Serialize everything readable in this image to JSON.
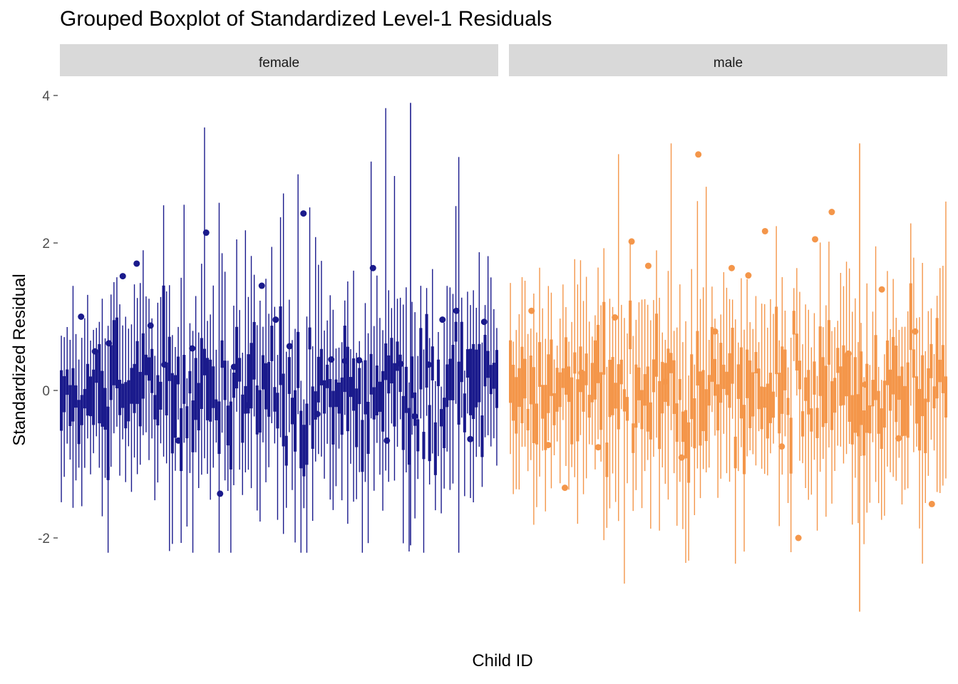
{
  "chart_data": {
    "type": "boxplot",
    "title": "Grouped Boxplot of Standardized Level-1 Residuals",
    "xlabel": "Child ID",
    "ylabel": "Standardized Residual",
    "y_ticks": [
      "-2",
      "0",
      "2",
      "4"
    ],
    "y_tick_values": [
      -2,
      0,
      2,
      4
    ],
    "ylim": [
      -3.2,
      4.1
    ],
    "grid": false,
    "facets": [
      {
        "name": "female",
        "color": "#1a1a8c",
        "approx_children": 150,
        "whisker_range_approx": [
          -2.2,
          3.9
        ],
        "outliers": [
          {
            "y": 1.0
          },
          {
            "y": 0.53
          },
          {
            "y": 0.64
          },
          {
            "y": 1.55
          },
          {
            "y": 1.72
          },
          {
            "y": 0.88
          },
          {
            "y": 0.35
          },
          {
            "y": -0.68
          },
          {
            "y": 0.57
          },
          {
            "y": 2.14
          },
          {
            "y": -1.4
          },
          {
            "y": 0.32
          },
          {
            "y": -0.2
          },
          {
            "y": 1.42
          },
          {
            "y": 0.96
          },
          {
            "y": 0.6
          },
          {
            "y": 2.4
          },
          {
            "y": -0.32
          },
          {
            "y": 0.42
          },
          {
            "y": 0.4
          },
          {
            "y": 0.41
          },
          {
            "y": 1.66
          },
          {
            "y": -0.68
          },
          {
            "y": 0.36
          },
          {
            "y": -0.35
          },
          {
            "y": 0.35
          },
          {
            "y": 0.96
          },
          {
            "y": 1.08
          },
          {
            "y": -0.66
          },
          {
            "y": 0.93
          }
        ]
      },
      {
        "name": "male",
        "color": "#f4964a",
        "approx_children": 150,
        "whisker_range_approx": [
          -3.1,
          3.35
        ],
        "outliers": [
          {
            "y": 1.08
          },
          {
            "y": -0.74
          },
          {
            "y": -1.32
          },
          {
            "y": 0.24
          },
          {
            "y": -0.77
          },
          {
            "y": 0.99
          },
          {
            "y": 2.02
          },
          {
            "y": 1.69
          },
          {
            "y": 0.12
          },
          {
            "y": -0.91
          },
          {
            "y": 3.2
          },
          {
            "y": 0.8
          },
          {
            "y": 1.66
          },
          {
            "y": 1.56
          },
          {
            "y": 2.16
          },
          {
            "y": -0.76
          },
          {
            "y": -2.0
          },
          {
            "y": 2.05
          },
          {
            "y": 2.42
          },
          {
            "y": 0.5
          },
          {
            "y": 0.08
          },
          {
            "y": 1.37
          },
          {
            "y": -0.65
          },
          {
            "y": 0.8
          },
          {
            "y": -1.54
          }
        ]
      }
    ]
  }
}
